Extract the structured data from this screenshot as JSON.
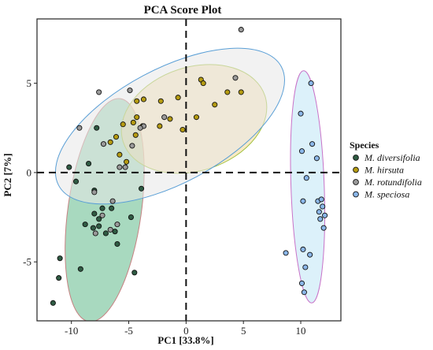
{
  "chart_data": {
    "type": "scatter",
    "title": "PCA Score Plot",
    "xlabel": "PC1 [33.8%]",
    "ylabel": "PC2 [7%]",
    "xlim": [
      -13.0,
      13.5
    ],
    "ylim": [
      -8.3,
      8.6
    ],
    "xticks": [
      -10,
      -5,
      0,
      5,
      10
    ],
    "yticks": [
      -5,
      0,
      5
    ],
    "grid": false,
    "legend": {
      "title": "Species",
      "position": "right"
    },
    "series": [
      {
        "name": "M. diversifolia",
        "color": "#2f5b43",
        "ellipse_fill": "#60b98a",
        "ellipse_stroke": "#c58282",
        "ellipse": {
          "cx": -7.1,
          "cy": -2.1,
          "rx": 3.2,
          "ry": 6.3,
          "angle_deg": -8
        },
        "points": [
          [
            -7.8,
            2.5
          ],
          [
            -10.2,
            0.3
          ],
          [
            -9.6,
            -0.5
          ],
          [
            -8.5,
            0.5
          ],
          [
            -8.0,
            -1.0
          ],
          [
            -7.3,
            -2.0
          ],
          [
            -6.5,
            -2.0
          ],
          [
            -8.0,
            -2.3
          ],
          [
            -7.6,
            -2.6
          ],
          [
            -8.8,
            -2.9
          ],
          [
            -8.1,
            -3.1
          ],
          [
            -7.6,
            -3.0
          ],
          [
            -7.0,
            -3.4
          ],
          [
            -6.2,
            -3.3
          ],
          [
            -4.8,
            -2.5
          ],
          [
            -3.9,
            -0.9
          ],
          [
            -6.0,
            -4.0
          ],
          [
            -11.0,
            -4.8
          ],
          [
            -9.2,
            -5.4
          ],
          [
            -4.5,
            -5.6
          ],
          [
            -11.1,
            -5.9
          ],
          [
            -11.6,
            -7.3
          ]
        ]
      },
      {
        "name": "M. hirsuta",
        "color": "#b59b12",
        "ellipse_fill": "#f3d796",
        "ellipse_stroke": "#a4c23f",
        "ellipse": {
          "cx": 0.7,
          "cy": 3.0,
          "rx": 6.5,
          "ry": 2.9,
          "angle_deg": 18
        },
        "points": [
          [
            4.8,
            4.5
          ],
          [
            3.6,
            4.5
          ],
          [
            1.3,
            5.2
          ],
          [
            1.5,
            5.0
          ],
          [
            -0.7,
            4.2
          ],
          [
            -2.2,
            4.0
          ],
          [
            -3.7,
            4.1
          ],
          [
            -4.3,
            4.0
          ],
          [
            -4.3,
            3.1
          ],
          [
            -4.6,
            2.8
          ],
          [
            -1.4,
            3.0
          ],
          [
            -2.3,
            2.6
          ],
          [
            -3.8,
            2.6
          ],
          [
            -4.4,
            2.1
          ],
          [
            -5.5,
            2.7
          ],
          [
            -6.1,
            2.0
          ],
          [
            -6.6,
            1.7
          ],
          [
            -5.8,
            1.0
          ],
          [
            -5.2,
            0.6
          ],
          [
            0.9,
            3.1
          ],
          [
            2.5,
            3.8
          ],
          [
            -0.3,
            2.4
          ]
        ]
      },
      {
        "name": "M. rotundifolia",
        "color": "#9a9a9a",
        "ellipse_fill": "#e8e8e8",
        "ellipse_stroke": "#5a9fd6",
        "ellipse": {
          "cx": -1.4,
          "cy": 2.6,
          "rx": 11.0,
          "ry": 3.2,
          "angle_deg": 28
        },
        "points": [
          [
            4.8,
            8.0
          ],
          [
            4.3,
            5.3
          ],
          [
            -4.9,
            4.6
          ],
          [
            -7.6,
            4.5
          ],
          [
            -1.9,
            3.1
          ],
          [
            -3.7,
            2.6
          ],
          [
            -4.0,
            2.5
          ],
          [
            -7.2,
            1.6
          ],
          [
            -4.7,
            1.5
          ],
          [
            -5.8,
            0.3
          ],
          [
            -5.3,
            0.3
          ],
          [
            -9.3,
            2.5
          ],
          [
            -8.0,
            -1.1
          ],
          [
            -6.4,
            -1.6
          ],
          [
            -7.3,
            -2.4
          ],
          [
            -6.0,
            -2.9
          ],
          [
            -6.6,
            -3.2
          ],
          [
            -7.9,
            -3.4
          ]
        ]
      },
      {
        "name": "M. speciosa",
        "color": "#8ab6e8",
        "ellipse_fill": "#bfe6f5",
        "ellipse_stroke": "#c873c8",
        "ellipse": {
          "cx": 10.6,
          "cy": -0.8,
          "rx": 1.45,
          "ry": 6.5,
          "angle_deg": 2
        },
        "points": [
          [
            10.9,
            5.0
          ],
          [
            10.0,
            3.3
          ],
          [
            11.0,
            1.6
          ],
          [
            10.1,
            1.2
          ],
          [
            11.4,
            0.8
          ],
          [
            10.5,
            -0.3
          ],
          [
            10.2,
            -1.6
          ],
          [
            11.5,
            -1.6
          ],
          [
            11.8,
            -1.5
          ],
          [
            11.9,
            -1.9
          ],
          [
            11.6,
            -2.2
          ],
          [
            12.1,
            -2.4
          ],
          [
            11.7,
            -2.6
          ],
          [
            12.0,
            -3.1
          ],
          [
            10.2,
            -4.3
          ],
          [
            8.7,
            -4.5
          ],
          [
            10.8,
            -4.6
          ],
          [
            10.4,
            -5.3
          ],
          [
            10.1,
            -6.2
          ],
          [
            10.3,
            -6.7
          ]
        ]
      }
    ]
  }
}
